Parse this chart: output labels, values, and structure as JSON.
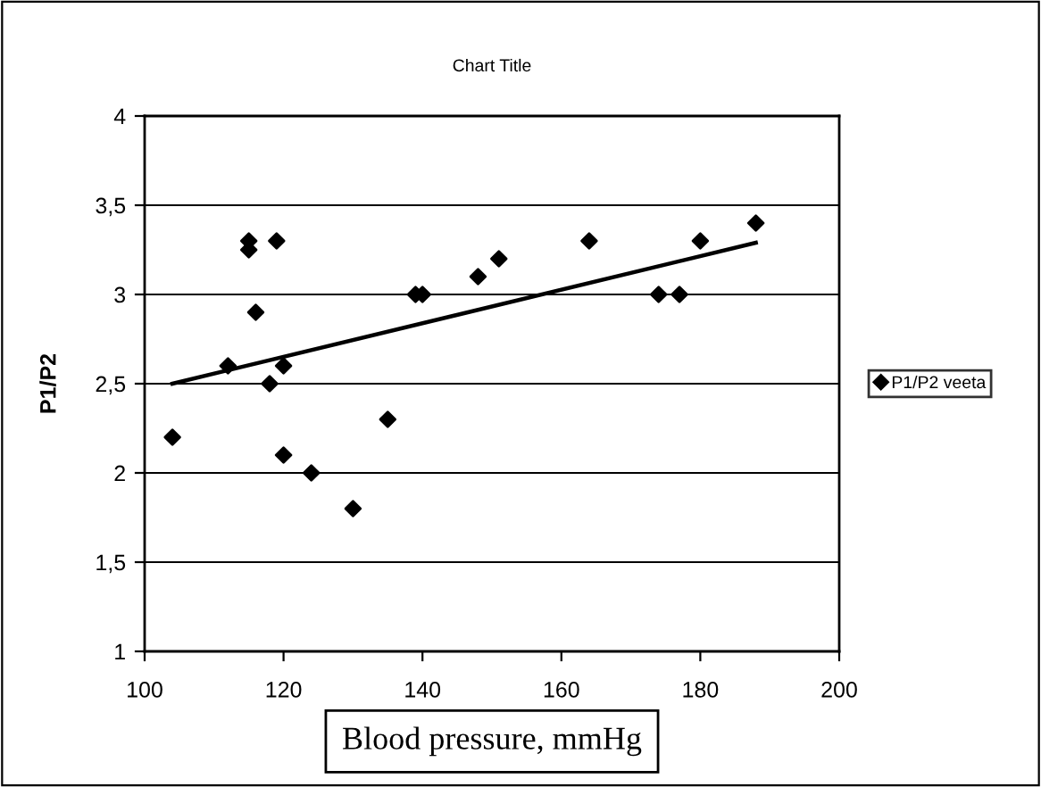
{
  "chart_data": {
    "type": "scatter",
    "title": "Chart Title",
    "xlabel": "Blood pressure, mmHg",
    "ylabel": "P1/P2",
    "x": [
      104,
      112,
      115,
      115,
      116,
      118,
      119,
      120,
      120,
      124,
      130,
      135,
      139,
      140,
      148,
      151,
      164,
      174,
      177,
      180,
      188
    ],
    "series": [
      {
        "name": "P1/P2 veeta",
        "color": "#000000",
        "marker": "diamond",
        "values": [
          2.2,
          2.6,
          3.3,
          3.25,
          2.9,
          2.5,
          3.3,
          2.6,
          2.1,
          2.0,
          1.8,
          2.3,
          3.0,
          3.0,
          3.1,
          3.2,
          3.3,
          3.0,
          3.0,
          3.3,
          3.4
        ]
      },
      {
        "type": "line",
        "color": "#000000",
        "marker": "none",
        "line_style": "solid",
        "x": [
          104,
          188
        ],
        "values": [
          2.5,
          3.29
        ]
      }
    ],
    "xlim": [
      100,
      200
    ],
    "xticks": [
      100,
      120,
      140,
      160,
      180,
      200
    ],
    "ylim": [
      1,
      4
    ],
    "yticks": [
      1,
      {
        "value": 1.5,
        "label": "1,5"
      },
      2,
      {
        "value": 2.5,
        "label": "2,5"
      },
      3,
      {
        "value": 3.5,
        "label": "3,5"
      },
      4
    ],
    "grid": "y",
    "legend": "right"
  }
}
